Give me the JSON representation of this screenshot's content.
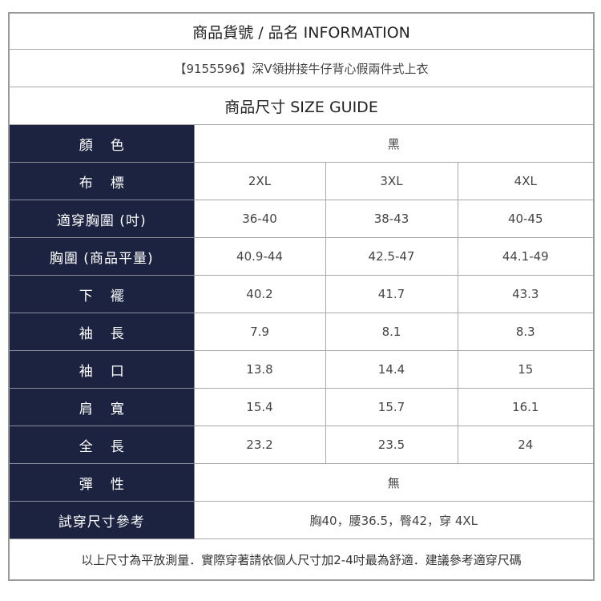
{
  "header": {
    "title": "商品貨號 / 品名 INFORMATION",
    "product": "【9155596】深V領拼接牛仔背心假兩件式上衣",
    "size_guide": "商品尺寸 SIZE GUIDE"
  },
  "colors": {
    "label_bg": "#1b2340"
  },
  "rows": {
    "color": {
      "label": "顏色",
      "value": "黑"
    },
    "tag": {
      "label": "布標",
      "values": [
        "2XL",
        "3XL",
        "4XL"
      ]
    },
    "fit_chest": {
      "label": "適穿胸圍 (吋)",
      "values": [
        "36-40",
        "38-43",
        "40-45"
      ]
    },
    "chest": {
      "label": "胸圍 (商品平量)",
      "values": [
        "40.9-44",
        "42.5-47",
        "44.1-49"
      ]
    },
    "hem": {
      "label": "下襬",
      "values": [
        "40.2",
        "41.7",
        "43.3"
      ]
    },
    "sleeve_length": {
      "label": "袖長",
      "values": [
        "7.9",
        "8.1",
        "8.3"
      ]
    },
    "cuff": {
      "label": "袖口",
      "values": [
        "13.8",
        "14.4",
        "15"
      ]
    },
    "shoulder": {
      "label": "肩寬",
      "values": [
        "15.4",
        "15.7",
        "16.1"
      ]
    },
    "length": {
      "label": "全長",
      "values": [
        "23.2",
        "23.5",
        "24"
      ]
    },
    "elasticity": {
      "label": "彈性",
      "value": "無"
    },
    "try_on": {
      "label": "試穿尺寸參考",
      "value": "胸40，腰36.5，臀42，穿 4XL"
    }
  },
  "footer": "以上尺寸為平放測量．實際穿著請依個人尺寸加2-4吋最為舒適．建議參考適穿尺碼"
}
